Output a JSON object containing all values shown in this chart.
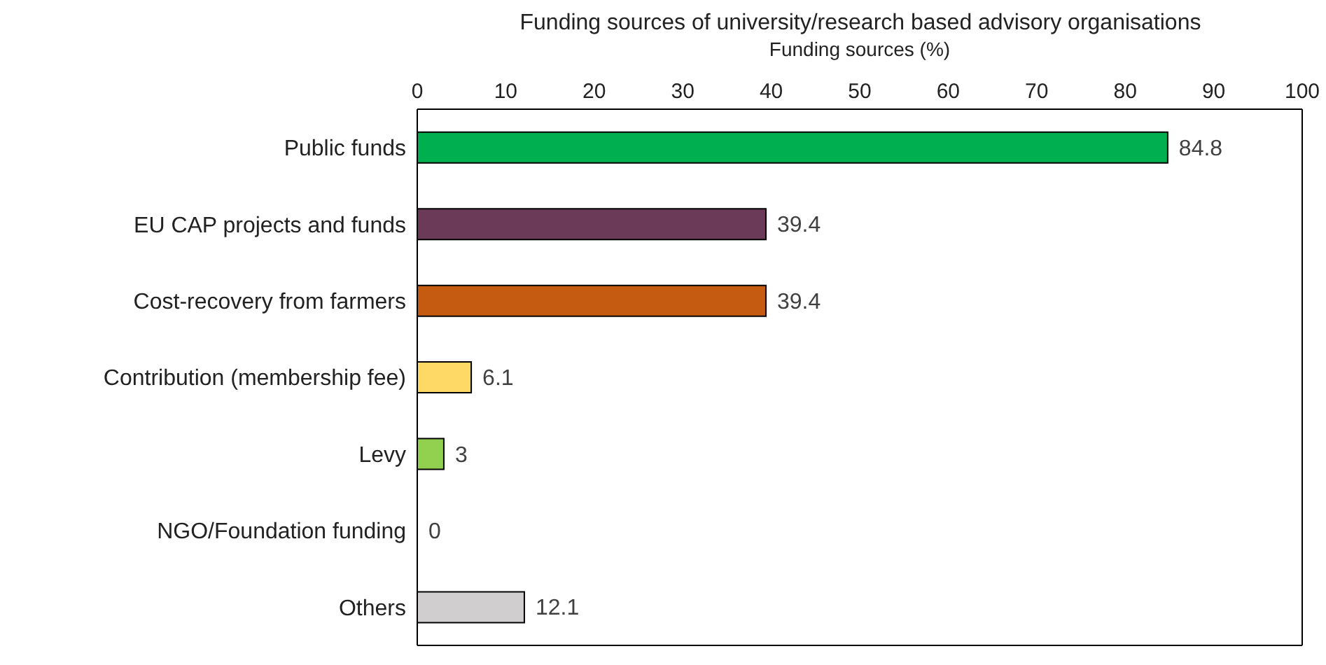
{
  "chart_data": {
    "type": "bar",
    "orientation": "horizontal",
    "title": "Funding sources of university/research based advisory organisations",
    "xlabel": "Funding sources  (%)",
    "categories": [
      "Public funds",
      "EU CAP projects and funds",
      "Cost-recovery from farmers",
      "Contribution (membership fee)",
      "Levy",
      "NGO/Foundation funding",
      "Others"
    ],
    "values": [
      84.8,
      39.4,
      39.4,
      6.1,
      3,
      0,
      12.1
    ],
    "colors": [
      "#00b050",
      "#6b3a58",
      "#c55a11",
      "#ffd966",
      "#92d050",
      "#a5a5a5",
      "#d0cece"
    ],
    "xlim": [
      0,
      100
    ],
    "xticks": [
      0,
      10,
      20,
      30,
      40,
      50,
      60,
      70,
      80,
      90,
      100
    ],
    "data_labels": true
  }
}
